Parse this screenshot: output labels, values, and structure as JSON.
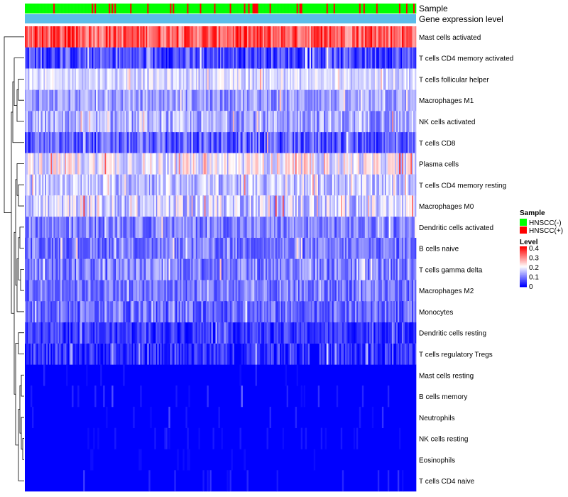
{
  "chart_data": {
    "type": "heatmap",
    "title": "",
    "annotation_tracks": [
      {
        "name": "Sample",
        "label": "Sample"
      },
      {
        "name": "Gene expression level",
        "label": "Gene expression level",
        "color": "#5bbce9"
      }
    ],
    "rows": [
      {
        "label": "Mast cells activated",
        "mean": 0.33,
        "spread": 0.07
      },
      {
        "label": "T cells CD4 memory activated",
        "mean": 0.06,
        "spread": 0.06
      },
      {
        "label": "T cells follicular helper",
        "mean": 0.17,
        "spread": 0.04
      },
      {
        "label": "Macrophages M1",
        "mean": 0.12,
        "spread": 0.05
      },
      {
        "label": "NK cells activated",
        "mean": 0.13,
        "spread": 0.06
      },
      {
        "label": "T cells CD8",
        "mean": 0.07,
        "spread": 0.06
      },
      {
        "label": "Plasma cells",
        "mean": 0.19,
        "spread": 0.07
      },
      {
        "label": "T cells CD4 memory resting",
        "mean": 0.15,
        "spread": 0.06
      },
      {
        "label": "Macrophages M0",
        "mean": 0.16,
        "spread": 0.07
      },
      {
        "label": "Dendritic cells activated",
        "mean": 0.1,
        "spread": 0.05
      },
      {
        "label": "B cells naive",
        "mean": 0.09,
        "spread": 0.05
      },
      {
        "label": "T cells gamma delta",
        "mean": 0.1,
        "spread": 0.06
      },
      {
        "label": "Macrophages M2",
        "mean": 0.09,
        "spread": 0.05
      },
      {
        "label": "Monocytes",
        "mean": 0.08,
        "spread": 0.05
      },
      {
        "label": "Dendritic cells resting",
        "mean": 0.04,
        "spread": 0.04
      },
      {
        "label": "T cells regulatory  Tregs",
        "mean": 0.03,
        "spread": 0.05
      },
      {
        "label": "Mast cells resting",
        "mean": 0.005,
        "spread": 0.02
      },
      {
        "label": "B cells memory",
        "mean": 0.01,
        "spread": 0.03
      },
      {
        "label": "Neutrophils",
        "mean": 0.01,
        "spread": 0.03
      },
      {
        "label": "NK cells resting",
        "mean": 0.005,
        "spread": 0.02
      },
      {
        "label": "Eosinophils",
        "mean": 0.002,
        "spread": 0.01
      },
      {
        "label": "T cells CD4 naive",
        "mean": 0.01,
        "spread": 0.03
      }
    ],
    "n_samples": 275,
    "sample_groups": [
      "HNSCC(-)",
      "HNSCC(+)"
    ],
    "hnscc_positive_fraction": 0.15,
    "color_scale": {
      "min": 0,
      "max": 0.4,
      "stops": [
        {
          "value": 0,
          "color": "#0000ff"
        },
        {
          "value": 0.2,
          "color": "#ffffff"
        },
        {
          "value": 0.4,
          "color": "#ff0000"
        }
      ]
    },
    "legend": {
      "position": "right",
      "sample_title": "Sample",
      "sample_entries": [
        {
          "label": "HNSCC(-)",
          "color": "#00ff00"
        },
        {
          "label": "HNSCC(+)",
          "color": "#ff0000"
        }
      ],
      "level_title": "Level",
      "level_ticks": [
        "0.4",
        "0.3",
        "0.2",
        "0.1",
        "0"
      ]
    },
    "dendrogram": "row clustering tree on left"
  }
}
